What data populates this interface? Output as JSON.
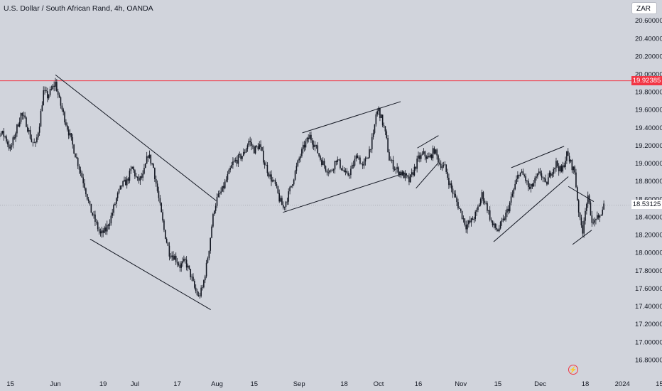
{
  "header": {
    "title": "U.S. Dollar / South African Rand, 4h, OANDA",
    "currency": "ZAR"
  },
  "colors": {
    "background": "#d1d4dc",
    "candles": "#131722",
    "resistance": "#f23645",
    "tag_red": "#f23645"
  },
  "chart_data": {
    "type": "candlestick",
    "title": "U.S. Dollar / South African Rand, 4h, OANDA",
    "ylim": [
      16.72,
      20.76
    ],
    "x_ticks": [
      {
        "label": "15",
        "d": -17
      },
      {
        "label": "Jun",
        "d": 0
      },
      {
        "label": "19",
        "d": 18
      },
      {
        "label": "Jul",
        "d": 30
      },
      {
        "label": "17",
        "d": 46
      },
      {
        "label": "Aug",
        "d": 61
      },
      {
        "label": "15",
        "d": 75
      },
      {
        "label": "Sep",
        "d": 92
      },
      {
        "label": "18",
        "d": 109
      },
      {
        "label": "Oct",
        "d": 122
      },
      {
        "label": "16",
        "d": 137
      },
      {
        "label": "Nov",
        "d": 153
      },
      {
        "label": "15",
        "d": 167
      },
      {
        "label": "Dec",
        "d": 183
      },
      {
        "label": "18",
        "d": 200
      },
      {
        "label": "2024",
        "d": 214
      },
      {
        "label": "15",
        "d": 228
      }
    ],
    "y_ticks": [
      "16.80000",
      "17.00000",
      "17.20000",
      "17.40000",
      "17.60000",
      "17.80000",
      "18.00000",
      "18.20000",
      "18.40000",
      "18.60000",
      "18.80000",
      "19.00000",
      "19.20000",
      "19.40000",
      "19.60000",
      "19.80000",
      "20.00000",
      "20.20000",
      "20.40000",
      "20.60000"
    ],
    "price_tags": {
      "resistance": "19.92385",
      "current": "18.53125"
    },
    "resistance_level": 19.92385,
    "last_price": 18.53125,
    "path_points": [
      {
        "d": -28.0,
        "p": 18.65
      },
      {
        "d": -27.0,
        "p": 18.9
      },
      {
        "d": -25.0,
        "p": 19.25
      },
      {
        "d": -23.0,
        "p": 19.1
      },
      {
        "d": -21.0,
        "p": 19.35
      },
      {
        "d": -19.0,
        "p": 19.3
      },
      {
        "d": -17.0,
        "p": 19.15
      },
      {
        "d": -15.0,
        "p": 19.35
      },
      {
        "d": -13.0,
        "p": 19.55
      },
      {
        "d": -11.0,
        "p": 19.45
      },
      {
        "d": -9.0,
        "p": 19.25
      },
      {
        "d": -7.5,
        "p": 19.2
      },
      {
        "d": -6.0,
        "p": 19.45
      },
      {
        "d": -4.5,
        "p": 19.8
      },
      {
        "d": -3.0,
        "p": 19.75
      },
      {
        "d": -1.5,
        "p": 19.82
      },
      {
        "d": 0.0,
        "p": 19.9
      },
      {
        "d": 1.5,
        "p": 19.7
      },
      {
        "d": 3.0,
        "p": 19.55
      },
      {
        "d": 5.0,
        "p": 19.35
      },
      {
        "d": 7.0,
        "p": 19.15
      },
      {
        "d": 9.0,
        "p": 18.95
      },
      {
        "d": 11.0,
        "p": 18.75
      },
      {
        "d": 13.0,
        "p": 18.5
      },
      {
        "d": 15.0,
        "p": 18.35
      },
      {
        "d": 17.0,
        "p": 18.2
      },
      {
        "d": 19.0,
        "p": 18.25
      },
      {
        "d": 21.0,
        "p": 18.4
      },
      {
        "d": 23.0,
        "p": 18.6
      },
      {
        "d": 25.0,
        "p": 18.75
      },
      {
        "d": 27.0,
        "p": 18.8
      },
      {
        "d": 29.0,
        "p": 18.95
      },
      {
        "d": 31.0,
        "p": 18.8
      },
      {
        "d": 33.0,
        "p": 18.85
      },
      {
        "d": 35.0,
        "p": 19.1
      },
      {
        "d": 37.0,
        "p": 18.95
      },
      {
        "d": 39.0,
        "p": 18.6
      },
      {
        "d": 41.0,
        "p": 18.25
      },
      {
        "d": 43.0,
        "p": 18.0
      },
      {
        "d": 45.0,
        "p": 17.95
      },
      {
        "d": 47.0,
        "p": 17.85
      },
      {
        "d": 49.0,
        "p": 17.9
      },
      {
        "d": 51.0,
        "p": 17.75
      },
      {
        "d": 52.5,
        "p": 17.6
      },
      {
        "d": 54.0,
        "p": 17.5
      },
      {
        "d": 55.5,
        "p": 17.6
      },
      {
        "d": 57.0,
        "p": 17.85
      },
      {
        "d": 58.0,
        "p": 18.05
      },
      {
        "d": 59.0,
        "p": 18.3
      },
      {
        "d": 60.0,
        "p": 18.5
      },
      {
        "d": 61.0,
        "p": 18.6
      },
      {
        "d": 63.0,
        "p": 18.7
      },
      {
        "d": 65.0,
        "p": 18.85
      },
      {
        "d": 67.0,
        "p": 19.0
      },
      {
        "d": 69.0,
        "p": 19.05
      },
      {
        "d": 71.0,
        "p": 19.1
      },
      {
        "d": 73.0,
        "p": 19.25
      },
      {
        "d": 75.0,
        "p": 19.15
      },
      {
        "d": 77.0,
        "p": 19.2
      },
      {
        "d": 79.0,
        "p": 19.0
      },
      {
        "d": 81.0,
        "p": 18.85
      },
      {
        "d": 83.0,
        "p": 18.75
      },
      {
        "d": 84.5,
        "p": 18.6
      },
      {
        "d": 86.0,
        "p": 18.5
      },
      {
        "d": 88.0,
        "p": 18.65
      },
      {
        "d": 90.0,
        "p": 18.85
      },
      {
        "d": 92.0,
        "p": 19.05
      },
      {
        "d": 94.0,
        "p": 19.2
      },
      {
        "d": 96.0,
        "p": 19.3
      },
      {
        "d": 98.0,
        "p": 19.2
      },
      {
        "d": 100.0,
        "p": 19.05
      },
      {
        "d": 102.0,
        "p": 18.95
      },
      {
        "d": 104.0,
        "p": 18.9
      },
      {
        "d": 106.0,
        "p": 19.05
      },
      {
        "d": 108.0,
        "p": 18.95
      },
      {
        "d": 110.0,
        "p": 18.85
      },
      {
        "d": 112.0,
        "p": 18.95
      },
      {
        "d": 114.0,
        "p": 19.1
      },
      {
        "d": 116.0,
        "p": 18.95
      },
      {
        "d": 118.0,
        "p": 19.1
      },
      {
        "d": 120.0,
        "p": 19.3
      },
      {
        "d": 121.0,
        "p": 19.55
      },
      {
        "d": 122.0,
        "p": 19.6
      },
      {
        "d": 123.0,
        "p": 19.5
      },
      {
        "d": 124.0,
        "p": 19.4
      },
      {
        "d": 125.0,
        "p": 19.25
      },
      {
        "d": 126.0,
        "p": 19.05
      },
      {
        "d": 128.0,
        "p": 18.95
      },
      {
        "d": 130.0,
        "p": 18.9
      },
      {
        "d": 132.0,
        "p": 18.85
      },
      {
        "d": 133.5,
        "p": 18.8
      },
      {
        "d": 135.0,
        "p": 18.9
      },
      {
        "d": 137.0,
        "p": 19.05
      },
      {
        "d": 139.0,
        "p": 19.1
      },
      {
        "d": 141.0,
        "p": 19.05
      },
      {
        "d": 143.0,
        "p": 19.15
      },
      {
        "d": 145.0,
        "p": 19.0
      },
      {
        "d": 147.0,
        "p": 18.95
      },
      {
        "d": 149.0,
        "p": 18.75
      },
      {
        "d": 151.0,
        "p": 18.6
      },
      {
        "d": 153.0,
        "p": 18.45
      },
      {
        "d": 155.0,
        "p": 18.3
      },
      {
        "d": 157.0,
        "p": 18.35
      },
      {
        "d": 159.0,
        "p": 18.45
      },
      {
        "d": 161.0,
        "p": 18.65
      },
      {
        "d": 163.0,
        "p": 18.5
      },
      {
        "d": 165.0,
        "p": 18.3
      },
      {
        "d": 167.0,
        "p": 18.25
      },
      {
        "d": 169.0,
        "p": 18.35
      },
      {
        "d": 171.0,
        "p": 18.5
      },
      {
        "d": 173.0,
        "p": 18.7
      },
      {
        "d": 175.0,
        "p": 18.9
      },
      {
        "d": 177.0,
        "p": 18.85
      },
      {
        "d": 179.0,
        "p": 18.7
      },
      {
        "d": 181.0,
        "p": 18.8
      },
      {
        "d": 183.0,
        "p": 18.9
      },
      {
        "d": 185.0,
        "p": 18.75
      },
      {
        "d": 187.0,
        "p": 18.9
      },
      {
        "d": 189.0,
        "p": 19.0
      },
      {
        "d": 191.0,
        "p": 18.9
      },
      {
        "d": 193.0,
        "p": 19.1
      },
      {
        "d": 194.5,
        "p": 19.0
      },
      {
        "d": 196.0,
        "p": 18.9
      },
      {
        "d": 197.0,
        "p": 18.6
      },
      {
        "d": 198.0,
        "p": 18.35
      },
      {
        "d": 199.0,
        "p": 18.25
      },
      {
        "d": 200.0,
        "p": 18.5
      },
      {
        "d": 201.0,
        "p": 18.6
      },
      {
        "d": 202.0,
        "p": 18.45
      },
      {
        "d": 203.0,
        "p": 18.3
      },
      {
        "d": 204.0,
        "p": 18.4
      },
      {
        "d": 205.0,
        "p": 18.35
      },
      {
        "d": 206.0,
        "p": 18.45
      },
      {
        "d": 207.0,
        "p": 18.53
      }
    ],
    "trendlines": [
      {
        "from": {
          "d": 0.0,
          "p": 19.99
        },
        "to": {
          "d": 60.7,
          "p": 18.58
        }
      },
      {
        "from": {
          "d": 13.1,
          "p": 18.15
        },
        "to": {
          "d": 58.6,
          "p": 17.36
        }
      },
      {
        "from": {
          "d": 85.9,
          "p": 18.45
        },
        "to": {
          "d": 131.9,
          "p": 18.89
        }
      },
      {
        "from": {
          "d": 93.2,
          "p": 19.34
        },
        "to": {
          "d": 130.3,
          "p": 19.69
        }
      },
      {
        "from": {
          "d": 136.1,
          "p": 18.72
        },
        "to": {
          "d": 144.4,
          "p": 19.0
        }
      },
      {
        "from": {
          "d": 136.6,
          "p": 19.17
        },
        "to": {
          "d": 144.6,
          "p": 19.31
        }
      },
      {
        "from": {
          "d": 165.4,
          "p": 18.12
        },
        "to": {
          "d": 193.6,
          "p": 18.85
        }
      },
      {
        "from": {
          "d": 172.1,
          "p": 18.95
        },
        "to": {
          "d": 192.0,
          "p": 19.19
        }
      },
      {
        "from": {
          "d": 193.6,
          "p": 18.74
        },
        "to": {
          "d": 203.2,
          "p": 18.57
        }
      },
      {
        "from": {
          "d": 195.2,
          "p": 18.09
        },
        "to": {
          "d": 202.4,
          "p": 18.25
        }
      }
    ]
  }
}
